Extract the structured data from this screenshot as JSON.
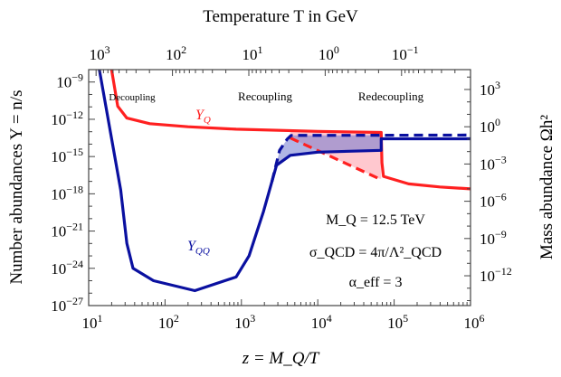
{
  "chart_data": {
    "type": "line",
    "title": "Temperature T in GeV",
    "xlabel": "z = M_Q/T",
    "ylabel": "Number abundances Y = n/s",
    "y2label": "Mass abundance Ωh²",
    "x_scale": "log10",
    "y_scale": "log10",
    "xlim_log10": [
      1,
      6
    ],
    "ylim_log10": [
      -27,
      -8
    ],
    "x_ticks": [
      "10^1",
      "10^2",
      "10^3",
      "10^4",
      "10^5",
      "10^6"
    ],
    "x_tick_log10": [
      1,
      2,
      3,
      4,
      5,
      6
    ],
    "y_ticks": [
      "10^-9",
      "10^-12",
      "10^-15",
      "10^-18",
      "10^-21",
      "10^-24",
      "10^-27"
    ],
    "y_tick_log10": [
      -9,
      -12,
      -15,
      -18,
      -21,
      -24,
      -27
    ],
    "y2_ticks": [
      "10^3",
      "10^0",
      "10^-3",
      "10^-6",
      "10^-9",
      "10^-12"
    ],
    "y2_tick_log10": [
      3,
      0,
      -3,
      -6,
      -9,
      -12
    ],
    "y2_offset_log10": 12.6,
    "top_ticks": [
      "10^3",
      "10^2",
      "10^1",
      "10^0",
      "10^-1"
    ],
    "top_tick_log10": [
      3,
      2,
      1,
      0,
      -1
    ],
    "top_axis_log10_T_at_z1": 4.097,
    "regions": [
      "Decoupling",
      "Recoupling",
      "Redecoupling"
    ],
    "annotations": {
      "mass": "M_Q = 12.5 TeV",
      "sigma": "σ_QCD = 4π/Λ²_QCD",
      "alpha": "α_eff = 3"
    },
    "series": [
      {
        "name": "Y_Q",
        "label_main": "Y",
        "label_sub": "Q",
        "style": "solid",
        "color": "#ff2020",
        "points_log10": [
          [
            1.3,
            -8
          ],
          [
            1.38,
            -10.95
          ],
          [
            1.5,
            -11.9
          ],
          [
            1.8,
            -12.35
          ],
          [
            2.3,
            -12.6
          ],
          [
            2.93,
            -12.8
          ],
          [
            4.0,
            -12.97
          ],
          [
            4.83,
            -13.06
          ],
          [
            4.84,
            -15.5
          ],
          [
            4.86,
            -16.6
          ],
          [
            5.19,
            -17.2
          ],
          [
            5.6,
            -17.45
          ],
          [
            6,
            -17.6
          ]
        ]
      },
      {
        "name": "Y_Q (dashed)",
        "style": "dashed",
        "color": "#ff2020",
        "points_log10": [
          [
            3.64,
            -13.5
          ],
          [
            4.81,
            -16.8
          ]
        ]
      },
      {
        "name": "Y_QQ",
        "label_main": "Y",
        "label_sub": "QQ",
        "style": "solid",
        "color": "#0a10a0",
        "points_log10": [
          [
            1.14,
            -8
          ],
          [
            1.42,
            -17.7
          ],
          [
            1.5,
            -22
          ],
          [
            1.58,
            -24
          ],
          [
            1.85,
            -25
          ],
          [
            2.39,
            -25.8
          ],
          [
            2.93,
            -24.7
          ],
          [
            3.1,
            -23
          ],
          [
            3.29,
            -19.4
          ],
          [
            3.4,
            -17
          ],
          [
            3.46,
            -15.7
          ],
          [
            3.64,
            -14.9
          ],
          [
            4.0,
            -14.65
          ],
          [
            4.83,
            -14.5
          ],
          [
            4.83,
            -13.57
          ],
          [
            6,
            -13.57
          ]
        ]
      },
      {
        "name": "Y_QQ (dashed)",
        "style": "dashed",
        "color": "#0a10a0",
        "points_log10": [
          [
            3.4,
            -17
          ],
          [
            3.5,
            -14.5
          ],
          [
            3.6,
            -13.6
          ],
          [
            3.65,
            -13.3
          ],
          [
            6,
            -13.27
          ]
        ]
      }
    ],
    "fills": [
      {
        "name": "pink-region",
        "color": "#ff9aa8",
        "upper": "Y_Q",
        "lower": "Y_Q (dashed)",
        "range_log10": [
          3.64,
          4.83
        ]
      },
      {
        "name": "blue-region",
        "color": "#7078d0",
        "upper": "Y_QQ (dashed)",
        "lower": "Y_QQ",
        "range_log10": [
          3.4,
          4.83
        ]
      }
    ]
  }
}
